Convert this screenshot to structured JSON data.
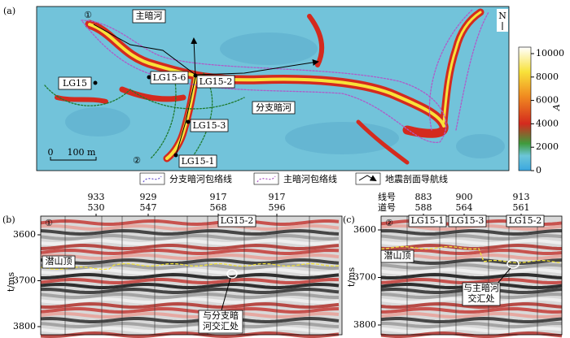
{
  "panel_a": {
    "label": "(a)",
    "north": "N",
    "marks": {
      "start_1": "①",
      "main_channel": "主暗河",
      "lg15": "LG15",
      "lg15_6": "LG15-6",
      "lg15_2": "LG15-2",
      "branch_channel": "分支暗河",
      "lg15_3": "LG15-3",
      "start_2": "②",
      "lg15_1": "LG15-1"
    },
    "scale_bar": {
      "zero": "0",
      "length": "100 m"
    },
    "colorbar": {
      "title": "A",
      "ticks": [
        0,
        2000,
        4000,
        6000,
        8000,
        10000
      ]
    }
  },
  "legend": [
    "分支暗河包络线",
    "主暗河包络线",
    "地震剖面导航线"
  ],
  "panel_b": {
    "label": "(b)",
    "y_title": "t/ms",
    "yticks": [
      3600,
      3700,
      3800
    ],
    "traces": [
      {
        "line": 933,
        "trace": 530
      },
      {
        "line": 929,
        "trace": 547
      },
      {
        "line": 917,
        "trace": 568
      },
      {
        "line": 917,
        "trace": 596
      }
    ],
    "marks": {
      "start": "①",
      "well": "LG15-2",
      "top": "潜山顶",
      "junction": [
        "与分支暗",
        "河交汇处"
      ]
    }
  },
  "panel_c": {
    "label": "(c)",
    "y_title": "t/ms",
    "yticks": [
      3600,
      3700,
      3800
    ],
    "line_title": "线号",
    "trace_title": "道号",
    "traces": [
      {
        "line": 883,
        "trace": 588
      },
      {
        "line": 900,
        "trace": 564
      },
      {
        "line": 913,
        "trace": 561
      }
    ],
    "marks": {
      "start": "②",
      "well_1": "LG15-1",
      "well_3": "LG15-3",
      "well_2": "LG15-2",
      "top": "潜山顶",
      "junction": [
        "与主暗河",
        "交汇处"
      ]
    }
  }
}
